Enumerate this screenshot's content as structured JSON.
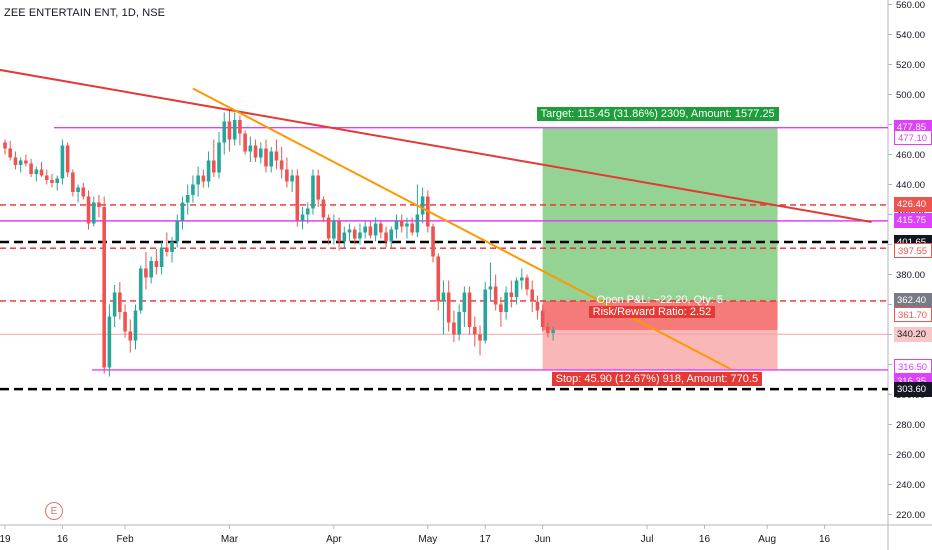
{
  "header": {
    "symbol_title": "ZEE ENTERTAIN ENT, 1D, NSE"
  },
  "earnings_marker": {
    "label": "E"
  },
  "colors": {
    "up": "#26a69a",
    "down": "#ef5350",
    "magenta": "#e040fb",
    "red_trend": "#e53935",
    "orange_trend": "#ff9800",
    "target_zone": "#8fd18f",
    "stop_zone_strong": "#f47474",
    "stop_zone_light": "#f9b3b3",
    "dark_dash": "#000000",
    "red_dash": "#ef2a2a"
  },
  "chart_data": {
    "type": "candlestick",
    "symbol": "ZEE ENTERTAIN ENT",
    "interval": "1D",
    "exchange": "NSE",
    "y_axis": {
      "ylim": [
        213,
        563
      ],
      "ticks": [
        220,
        240,
        260,
        280,
        300,
        320,
        340,
        360,
        380,
        400,
        420,
        440,
        460,
        480,
        500,
        520,
        540,
        560
      ],
      "tick_labels": [
        "220.00",
        "240.00",
        "260.00",
        "280.00",
        "300.00",
        "320.00",
        "340.00",
        "360.00",
        "380.00",
        "400.00",
        "420.00",
        "440.00",
        "460.00",
        "480.00",
        "500.00",
        "520.00",
        "540.00",
        "560.00"
      ]
    },
    "x_axis": {
      "ticks": [
        {
          "label": "19",
          "index": 0
        },
        {
          "label": "16",
          "index": 11
        },
        {
          "label": "Feb",
          "index": 23
        },
        {
          "label": "Mar",
          "index": 43
        },
        {
          "label": "Apr",
          "index": 63
        },
        {
          "label": "May",
          "index": 81
        },
        {
          "label": "17",
          "index": 92
        },
        {
          "label": "Jun",
          "index": 103
        },
        {
          "label": "Jul",
          "index": 123
        },
        {
          "label": "16",
          "index": 134
        },
        {
          "label": "Aug",
          "index": 146
        },
        {
          "label": "16",
          "index": 157
        }
      ],
      "total_slots": 166
    },
    "candles": [
      [
        468,
        470,
        460,
        464
      ],
      [
        464,
        469,
        456,
        458
      ],
      [
        458,
        462,
        450,
        453
      ],
      [
        453,
        458,
        448,
        456
      ],
      [
        456,
        460,
        452,
        454
      ],
      [
        454,
        457,
        445,
        447
      ],
      [
        447,
        452,
        442,
        450
      ],
      [
        450,
        455,
        445,
        446
      ],
      [
        446,
        450,
        440,
        443
      ],
      [
        443,
        447,
        438,
        441
      ],
      [
        441,
        446,
        436,
        444
      ],
      [
        444,
        470,
        440,
        466
      ],
      [
        466,
        468,
        445,
        448
      ],
      [
        448,
        450,
        432,
        435
      ],
      [
        435,
        440,
        428,
        438
      ],
      [
        438,
        441,
        430,
        432
      ],
      [
        432,
        436,
        410,
        414
      ],
      [
        414,
        432,
        412,
        428
      ],
      [
        428,
        433,
        418,
        425
      ],
      [
        425,
        432,
        314,
        318
      ],
      [
        318,
        360,
        312,
        352
      ],
      [
        352,
        373,
        345,
        368
      ],
      [
        368,
        375,
        350,
        355
      ],
      [
        355,
        360,
        338,
        342
      ],
      [
        342,
        350,
        328,
        336
      ],
      [
        336,
        360,
        330,
        356
      ],
      [
        356,
        386,
        354,
        384
      ],
      [
        384,
        395,
        370,
        378
      ],
      [
        378,
        392,
        374,
        389
      ],
      [
        389,
        397,
        380,
        385
      ],
      [
        385,
        402,
        380,
        398
      ],
      [
        398,
        408,
        392,
        395
      ],
      [
        395,
        405,
        388,
        402
      ],
      [
        402,
        420,
        398,
        416
      ],
      [
        416,
        432,
        410,
        428
      ],
      [
        428,
        440,
        420,
        433
      ],
      [
        433,
        446,
        428,
        440
      ],
      [
        440,
        452,
        432,
        446
      ],
      [
        446,
        450,
        438,
        442
      ],
      [
        442,
        462,
        438,
        456
      ],
      [
        456,
        470,
        445,
        448
      ],
      [
        448,
        475,
        444,
        468
      ],
      [
        468,
        488,
        460,
        482
      ],
      [
        482,
        489,
        462,
        470
      ],
      [
        470,
        488,
        466,
        483
      ],
      [
        483,
        486,
        466,
        474
      ],
      [
        474,
        476,
        460,
        462
      ],
      [
        462,
        472,
        455,
        466
      ],
      [
        466,
        470,
        455,
        458
      ],
      [
        458,
        468,
        454,
        464
      ],
      [
        464,
        470,
        448,
        452
      ],
      [
        452,
        465,
        448,
        462
      ],
      [
        462,
        470,
        450,
        456
      ],
      [
        456,
        465,
        444,
        450
      ],
      [
        450,
        458,
        438,
        442
      ],
      [
        442,
        450,
        435,
        446
      ],
      [
        446,
        450,
        412,
        416
      ],
      [
        416,
        425,
        410,
        420
      ],
      [
        420,
        428,
        414,
        424
      ],
      [
        424,
        450,
        420,
        446
      ],
      [
        446,
        450,
        425,
        430
      ],
      [
        430,
        432,
        415,
        418
      ],
      [
        418,
        420,
        400,
        404
      ],
      [
        404,
        420,
        400,
        416
      ],
      [
        416,
        418,
        396,
        402
      ],
      [
        402,
        412,
        398,
        408
      ],
      [
        408,
        414,
        402,
        410
      ],
      [
        410,
        412,
        400,
        404
      ],
      [
        404,
        414,
        400,
        408
      ],
      [
        408,
        416,
        404,
        412
      ],
      [
        412,
        416,
        404,
        406
      ],
      [
        406,
        418,
        402,
        414
      ],
      [
        414,
        416,
        404,
        408
      ],
      [
        408,
        412,
        398,
        402
      ],
      [
        402,
        412,
        398,
        410
      ],
      [
        410,
        420,
        404,
        416
      ],
      [
        416,
        420,
        408,
        412
      ],
      [
        412,
        418,
        404,
        414
      ],
      [
        414,
        418,
        406,
        408
      ],
      [
        408,
        440,
        405,
        420
      ],
      [
        420,
        438,
        414,
        432
      ],
      [
        432,
        436,
        408,
        412
      ],
      [
        412,
        414,
        388,
        392
      ],
      [
        392,
        394,
        356,
        362
      ],
      [
        362,
        376,
        340,
        368
      ],
      [
        368,
        376,
        342,
        348
      ],
      [
        348,
        356,
        335,
        340
      ],
      [
        340,
        360,
        336,
        355
      ],
      [
        355,
        372,
        345,
        368
      ],
      [
        368,
        372,
        340,
        345
      ],
      [
        345,
        352,
        332,
        340
      ],
      [
        340,
        346,
        326,
        336
      ],
      [
        336,
        375,
        334,
        370
      ],
      [
        370,
        388,
        362,
        372
      ],
      [
        372,
        380,
        356,
        360
      ],
      [
        360,
        365,
        345,
        355
      ],
      [
        355,
        372,
        350,
        368
      ],
      [
        368,
        376,
        358,
        365
      ],
      [
        365,
        378,
        360,
        376
      ],
      [
        376,
        384,
        370,
        378
      ],
      [
        378,
        380,
        366,
        370
      ],
      [
        370,
        376,
        355,
        362
      ],
      [
        362,
        366,
        350,
        356
      ],
      [
        356,
        360,
        342,
        345
      ],
      [
        345,
        348,
        338,
        341
      ],
      [
        341,
        345,
        336,
        343
      ]
    ],
    "horizontal_lines": [
      {
        "price": 477.85,
        "style": "solid",
        "color": "magenta"
      },
      {
        "price": 426.4,
        "style": "dashed",
        "color": "red"
      },
      {
        "price": 415.75,
        "style": "solid",
        "color": "magenta"
      },
      {
        "price": 401.65,
        "style": "dashed",
        "color": "black"
      },
      {
        "price": 397.55,
        "style": "dashed",
        "color": "red"
      },
      {
        "price": 362.4,
        "style": "dashed",
        "color": "red"
      },
      {
        "price": 316.35,
        "style": "solid",
        "color": "magenta"
      },
      {
        "price": 303.6,
        "style": "dashed",
        "color": "black"
      },
      {
        "price": 340.2,
        "style": "solid",
        "color": "light-red"
      }
    ],
    "trend_lines": [
      {
        "color": "red_trend",
        "from": {
          "index": -2,
          "price": 517
        },
        "to": {
          "index": 166,
          "price": 415
        }
      },
      {
        "color": "orange_trend",
        "from": {
          "index": 36,
          "price": 504
        },
        "to": {
          "index": 139,
          "price": 317
        }
      }
    ],
    "position": {
      "entry": 362.4,
      "target": 477.85,
      "stop": 316.5,
      "start_index": 103,
      "end_index": 148
    },
    "price_tags": [
      {
        "label": "477.85",
        "price": 477.85,
        "bg": "#e040fb",
        "fg": "#ffffff",
        "bordered": false
      },
      {
        "label": "477.10",
        "price": 471.5,
        "bg": "#ffffff",
        "fg": "#e040fb",
        "bordered": true
      },
      {
        "label": "426.40",
        "price": 426.4,
        "bg": "#ef5350",
        "fg": "#ffffff",
        "bordered": false
      },
      {
        "label": "415.75",
        "price": 415.75,
        "bg": "#e040fb",
        "fg": "#ffffff",
        "bordered": false
      },
      {
        "label": "401.65",
        "price": 401.65,
        "bg": "#131722",
        "fg": "#ffffff",
        "bordered": false
      },
      {
        "label": "397.55",
        "price": 396.0,
        "bg": "#ffffff",
        "fg": "#ef5350",
        "bordered": true
      },
      {
        "label": "362.40",
        "price": 362.4,
        "bg": "#787b86",
        "fg": "#ffffff",
        "bordered": false
      },
      {
        "label": "361.70",
        "price": 353.5,
        "bg": "#ffffff",
        "fg": "#ef5350",
        "bordered": true
      },
      {
        "label": "340.20",
        "price": 340.2,
        "bg": "#f8c7c7",
        "fg": "#131722",
        "bordered": false
      },
      {
        "label": "316.50",
        "price": 318.5,
        "bg": "#ffffff",
        "fg": "#e040fb",
        "bordered": true
      },
      {
        "label": "316.35",
        "price": 308.5,
        "bg": "#e040fb",
        "fg": "#ffffff",
        "bordered": false
      },
      {
        "label": "303.60",
        "price": 303.6,
        "bg": "#131722",
        "fg": "#ffffff",
        "bordered": false
      }
    ],
    "annotations": {
      "target_label": "Target: 115.45 (31.86%) 2309, Amount: 1577.25",
      "open_pl_label": "Open P&L: −22.20, Qty: 5",
      "risk_reward_label": "Risk/Reward Ratio: 2.52",
      "stop_label": "Stop: 45.90 (12.67%) 918, Amount: 770.5"
    }
  }
}
